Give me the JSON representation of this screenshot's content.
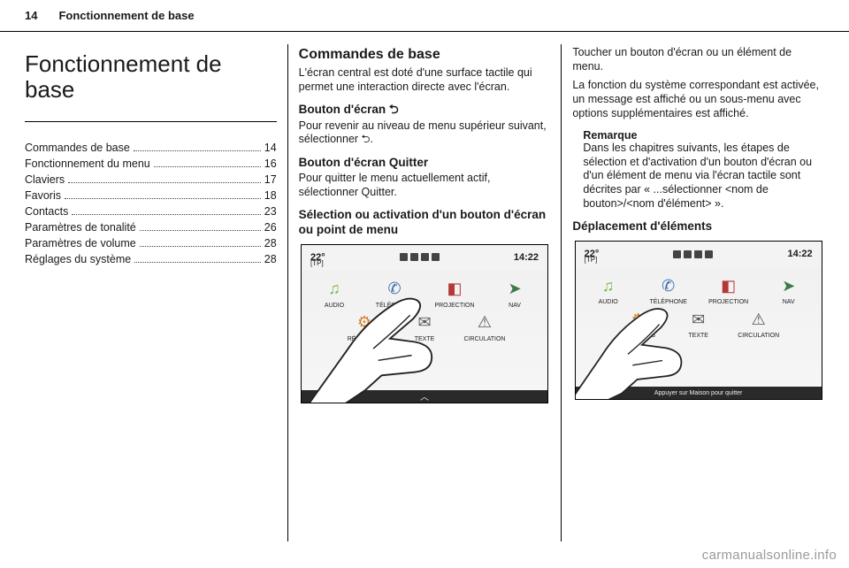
{
  "header": {
    "page_number": "14",
    "running_title": "Fonctionnement de base"
  },
  "col1": {
    "title": "Fonctionnement de base",
    "toc": [
      {
        "label": "Commandes de base",
        "page": "14"
      },
      {
        "label": "Fonctionnement du menu",
        "page": "16"
      },
      {
        "label": "Claviers",
        "page": "17"
      },
      {
        "label": "Favoris",
        "page": "18"
      },
      {
        "label": "Contacts",
        "page": "23"
      },
      {
        "label": "Paramètres de tonalité",
        "page": "26"
      },
      {
        "label": "Paramètres de volume",
        "page": "28"
      },
      {
        "label": "Réglages du système",
        "page": "28"
      }
    ]
  },
  "col2": {
    "heading": "Commandes de base",
    "intro": "L'écran central est doté d'une surface tactile qui permet une interaction directe avec l'écran.",
    "btn_back_h": "Bouton d'écran ⮌",
    "btn_back_p": "Pour revenir au niveau de menu supérieur suivant, sélectionner ⮌.",
    "btn_quit_h": "Bouton d'écran Quitter",
    "btn_quit_p": "Pour quitter le menu actuellement actif, sélectionner Quitter.",
    "sel_h": "Sélection ou activation d'un bouton d'écran ou point de menu"
  },
  "col3": {
    "p1": "Toucher un bouton d'écran ou un élément de menu.",
    "p2": "La fonction du système correspondant est activée, un message est affiché ou un sous-menu avec options supplémentaires est affiché.",
    "remark_title": "Remarque",
    "remark_body": "Dans les chapitres suivants, les étapes de sélection et d'activation d'un bouton d'écran ou d'un élément de menu via l'écran tactile sont décrites par « ...sélectionner <nom de bouton>/<nom d'élément> ».",
    "move_h": "Déplacement d'éléments"
  },
  "infotainment": {
    "temp": "22°",
    "tp": "[TP]",
    "time": "14:22",
    "apps": [
      {
        "icon": "♫",
        "label": "AUDIO",
        "color": "#7ab84a"
      },
      {
        "icon": "✆",
        "label": "TÉLÉPHONE",
        "color": "#3a6bb0"
      },
      {
        "icon": "◧",
        "label": "PROJECTION",
        "color": "#b53838"
      },
      {
        "icon": "➤",
        "label": "NAV",
        "color": "#3c7a4a"
      },
      {
        "icon": "⚙",
        "label": "RÉGLAGES",
        "color": "#d87f2a"
      },
      {
        "icon": "✉",
        "label": "TEXTE",
        "color": "#555"
      },
      {
        "icon": "⚠",
        "label": "CIRCULATION",
        "color": "#555"
      }
    ],
    "bottom_drag_hint": "Appuyer sur Maison pour quitter"
  },
  "watermark": "carmanualsonline.info"
}
